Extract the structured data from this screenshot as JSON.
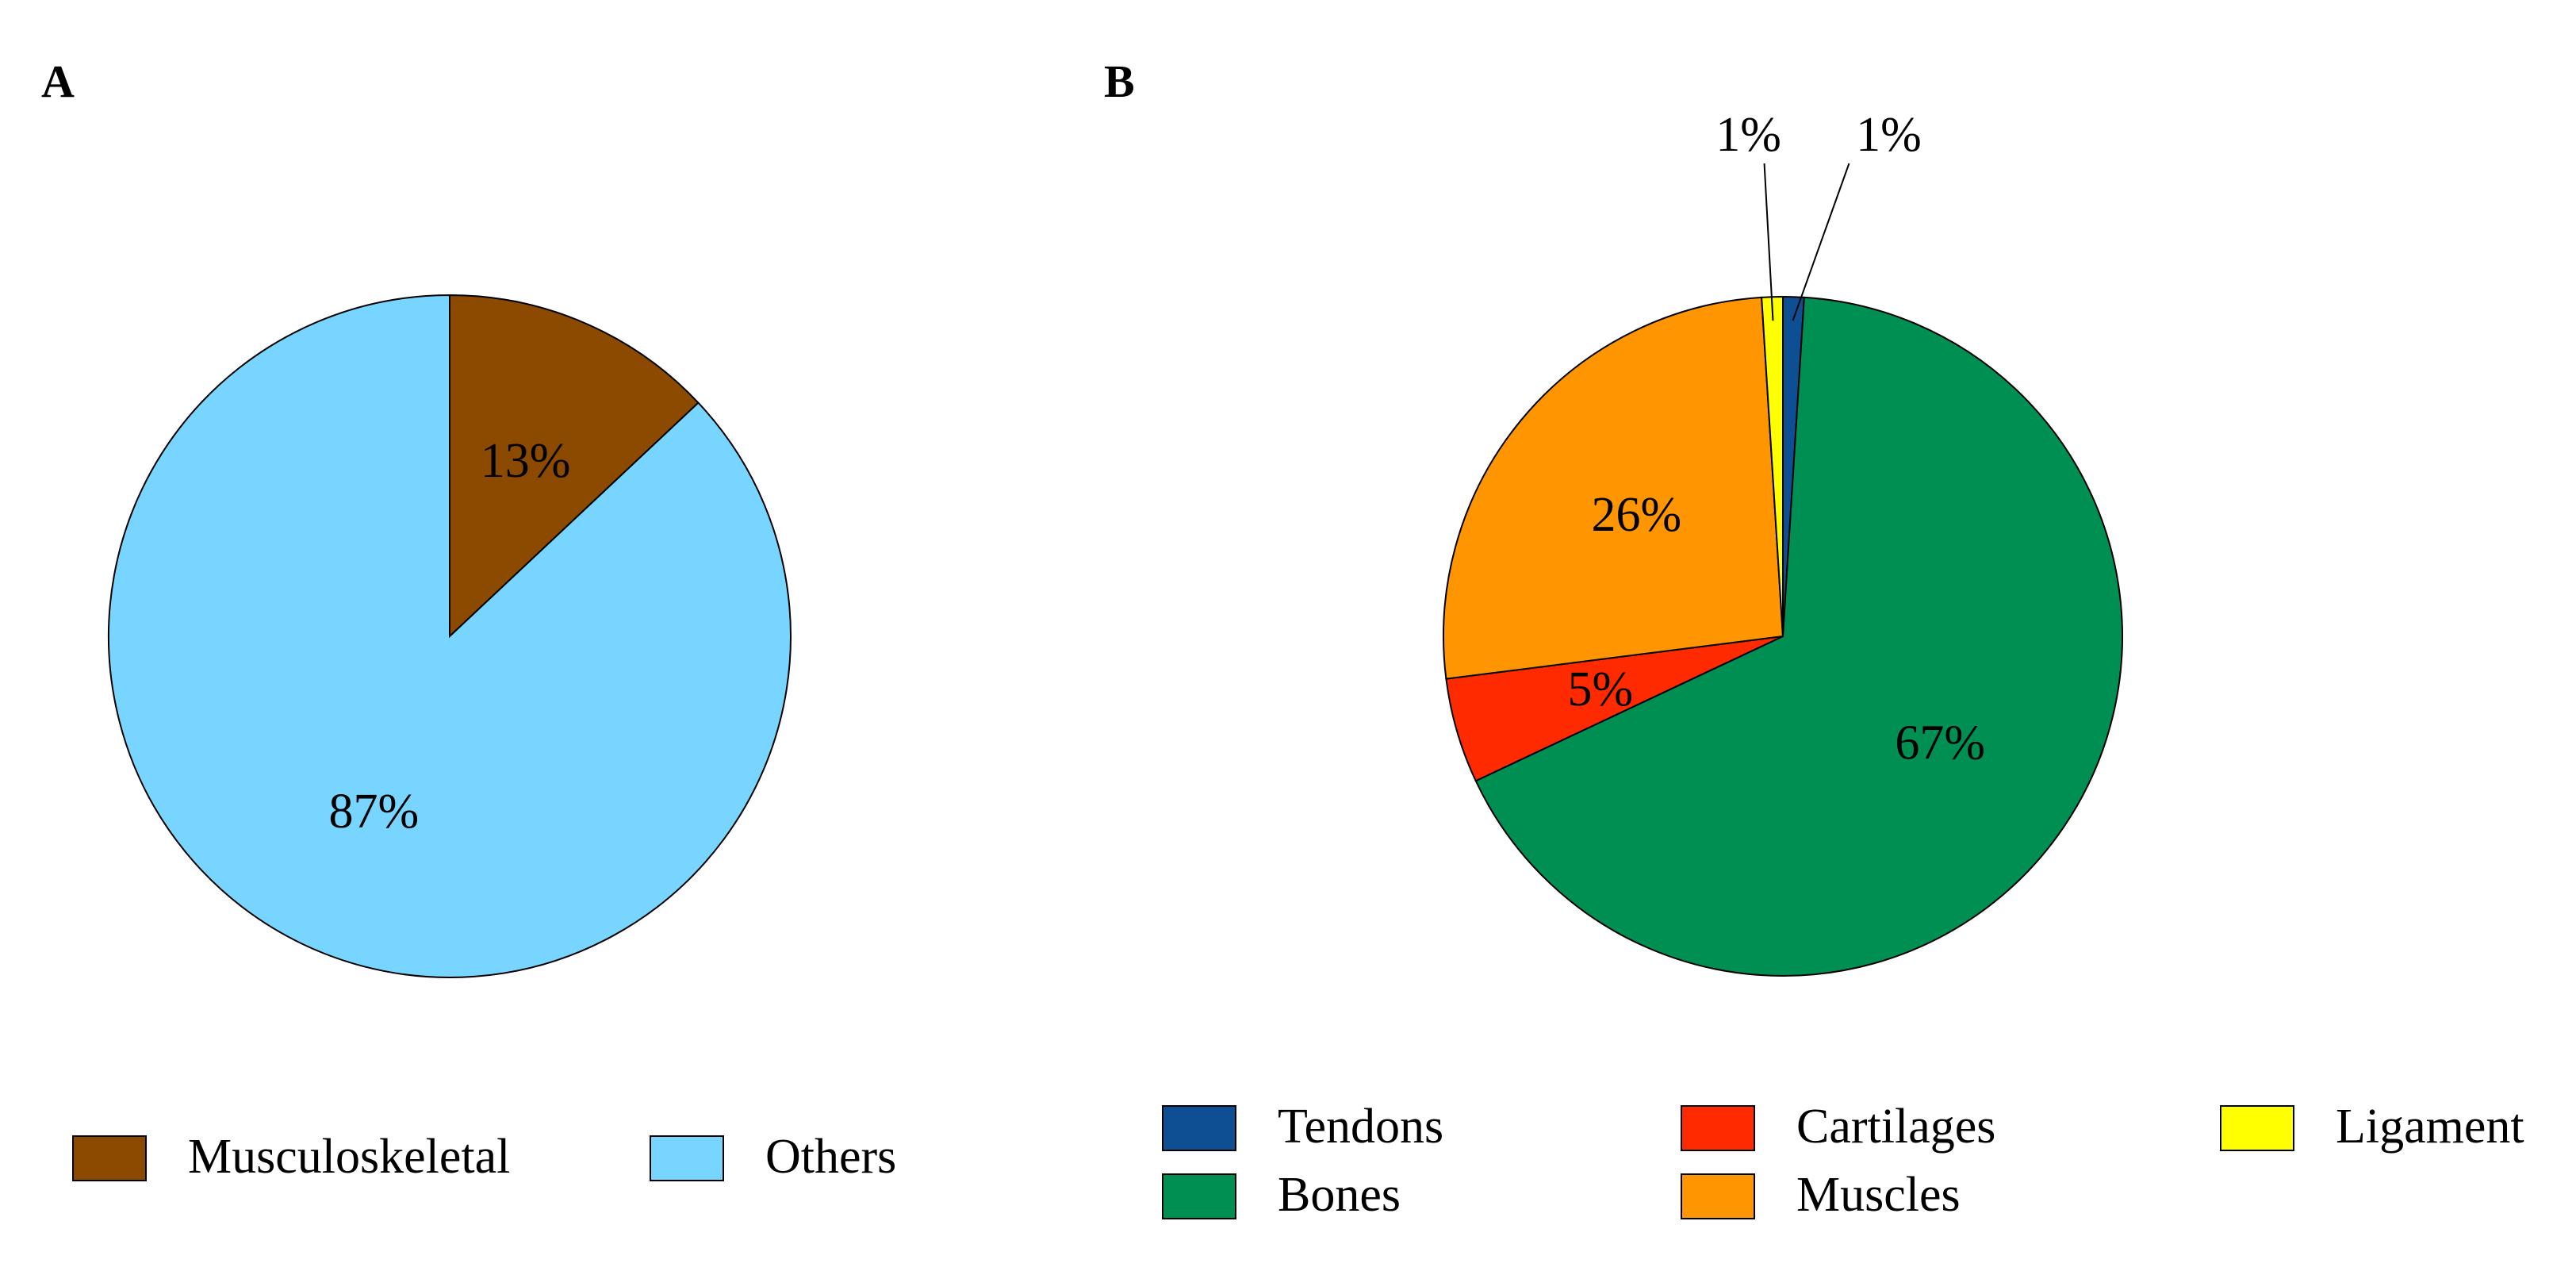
{
  "chart_data": [
    {
      "type": "pie",
      "panel": "A",
      "title": "",
      "start_angle_deg": 0,
      "direction": "clockwise",
      "slices": [
        {
          "name": "Musculoskeletal",
          "label": "Musculoskeletal",
          "value": 13,
          "text": "13%",
          "color": "#8B4A00"
        },
        {
          "name": "Others",
          "label": "Others",
          "value": 87,
          "text": "87%",
          "color": "#78D5FF"
        }
      ],
      "legend": {
        "placement": "bottom"
      }
    },
    {
      "type": "pie",
      "panel": "B",
      "title": "",
      "start_angle_deg": 0,
      "direction": "clockwise",
      "slices": [
        {
          "name": "Tendons",
          "label": "Tendons",
          "value": 1,
          "text": "1%",
          "color": "#0E4F94",
          "outside": true
        },
        {
          "name": "Bones",
          "label": "Bones",
          "value": 67,
          "text": "67%",
          "color": "#008F52"
        },
        {
          "name": "Cartilages",
          "label": "Cartilages",
          "value": 5,
          "text": "5%",
          "color": "#FF2A00"
        },
        {
          "name": "Muscles",
          "label": "Muscles",
          "value": 26,
          "text": "26%",
          "color": "#FF9500"
        },
        {
          "name": "Ligament",
          "label": "Ligament",
          "value": 1,
          "text": "1%",
          "color": "#FFFF00",
          "outside": true
        }
      ],
      "legend": {
        "placement": "bottom"
      }
    }
  ]
}
